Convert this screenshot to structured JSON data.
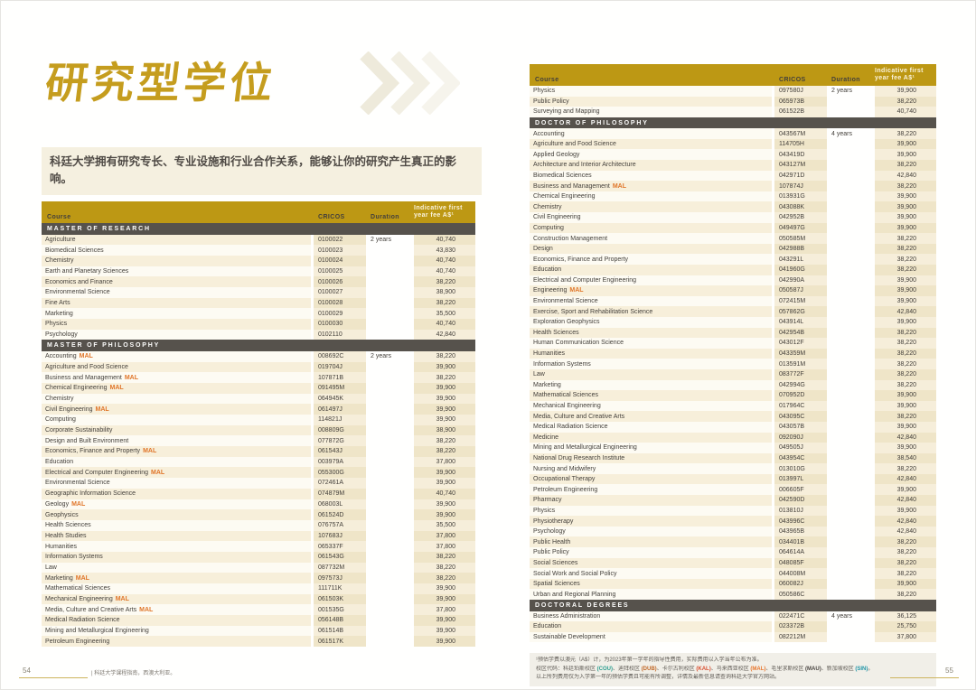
{
  "left_page": {
    "title": "研究型学位",
    "intro": "科廷大学拥有研究专长、专业设施和行业合作关系，能够让你的研究产生真正的影响。",
    "page_number": "54",
    "footer_text": "| 科廷大学课程指南，西澳大利亚。",
    "table": {
      "columns": {
        "course": "Course",
        "cricos": "CRICOS",
        "duration": "Duration",
        "fee_line1": "Indicative first",
        "fee_line2": "year fee A$¹"
      },
      "sections": [
        {
          "title": "MASTER OF RESEARCH",
          "stripe_start": "dark",
          "rows": [
            {
              "course": "Agriculture",
              "cricos": "0100022",
              "duration": "2 years",
              "fee": "40,740"
            },
            {
              "course": "Biomedical Sciences",
              "cricos": "0100023",
              "fee": "43,830"
            },
            {
              "course": "Chemistry",
              "cricos": "0100024",
              "fee": "40,740"
            },
            {
              "course": "Earth and Planetary Sciences",
              "cricos": "0100025",
              "fee": "40,740"
            },
            {
              "course": "Economics and Finance",
              "cricos": "0100026",
              "fee": "38,220"
            },
            {
              "course": "Environmental Science",
              "cricos": "0100027",
              "fee": "38,900"
            },
            {
              "course": "Fine Arts",
              "cricos": "0100028",
              "fee": "38,220"
            },
            {
              "course": "Marketing",
              "cricos": "0100029",
              "fee": "35,500"
            },
            {
              "course": "Physics",
              "cricos": "0100030",
              "fee": "40,740"
            },
            {
              "course": "Psychology",
              "cricos": "0102110",
              "fee": "42,840"
            }
          ]
        },
        {
          "title": "MASTER OF PHILOSOPHY",
          "stripe_start": "light",
          "rows": [
            {
              "course": "Accounting",
              "tag": "MAL",
              "cricos": "008692C",
              "duration": "2 years",
              "fee": "38,220"
            },
            {
              "course": "Agriculture and Food Science",
              "cricos": "019704J",
              "fee": "39,900"
            },
            {
              "course": "Business and Management",
              "tag": "MAL",
              "cricos": "107871B",
              "fee": "38,220"
            },
            {
              "course": "Chemical Engineering",
              "tag": "MAL",
              "cricos": "091495M",
              "fee": "39,900"
            },
            {
              "course": "Chemistry",
              "cricos": "064945K",
              "fee": "39,900"
            },
            {
              "course": "Civil Engineering",
              "tag": "MAL",
              "cricos": "061497J",
              "fee": "39,900"
            },
            {
              "course": "Computing",
              "cricos": "114821J",
              "fee": "39,900"
            },
            {
              "course": "Corporate Sustainability",
              "cricos": "008809G",
              "fee": "38,900"
            },
            {
              "course": "Design and Built Environment",
              "cricos": "077872G",
              "fee": "38,220"
            },
            {
              "course": "Economics, Finance and Property",
              "tag": "MAL",
              "cricos": "061543J",
              "fee": "38,220"
            },
            {
              "course": "Education",
              "cricos": "003979A",
              "fee": "37,800"
            },
            {
              "course": "Electrical and Computer Engineering",
              "tag": "MAL",
              "cricos": "055300G",
              "fee": "39,900"
            },
            {
              "course": "Environmental Science",
              "cricos": "072461A",
              "fee": "39,900"
            },
            {
              "course": "Geographic Information Science",
              "cricos": "074879M",
              "fee": "40,740"
            },
            {
              "course": "Geology",
              "tag": "MAL",
              "cricos": "068003L",
              "fee": "39,900"
            },
            {
              "course": "Geophysics",
              "cricos": "061524D",
              "fee": "39,900"
            },
            {
              "course": "Health Sciences",
              "cricos": "076757A",
              "fee": "35,500"
            },
            {
              "course": "Health Studies",
              "cricos": "107683J",
              "fee": "37,800"
            },
            {
              "course": "Humanities",
              "cricos": "065337F",
              "fee": "37,800"
            },
            {
              "course": "Information Systems",
              "cricos": "061543G",
              "fee": "38,220"
            },
            {
              "course": "Law",
              "cricos": "087732M",
              "fee": "38,220"
            },
            {
              "course": "Marketing",
              "tag": "MAL",
              "cricos": "097573J",
              "fee": "38,220"
            },
            {
              "course": "Mathematical Sciences",
              "cricos": "111711K",
              "fee": "39,900"
            },
            {
              "course": "Mechanical Engineering",
              "tag": "MAL",
              "cricos": "061503K",
              "fee": "39,900"
            },
            {
              "course": "Media, Culture and Creative Arts",
              "tag": "MAL",
              "cricos": "001535G",
              "fee": "37,800"
            },
            {
              "course": "Medical Radiation Science",
              "cricos": "056148B",
              "fee": "39,900"
            },
            {
              "course": "Mining and Metallurgical Engineering",
              "cricos": "061514B",
              "fee": "39,900"
            },
            {
              "course": "Petroleum Engineering",
              "cricos": "061517K",
              "fee": "39,900"
            }
          ]
        }
      ]
    }
  },
  "right_page": {
    "page_number": "55",
    "table": {
      "columns": {
        "course": "Course",
        "cricos": "CRICOS",
        "duration": "Duration",
        "fee_line1": "Indicative first",
        "fee_line2": "year fee A$¹"
      },
      "sections": [
        {
          "title": "",
          "stripe_start": "light",
          "rows": [
            {
              "course": "Physics",
              "cricos": "097580J",
              "duration": "2 years",
              "fee": "39,900"
            },
            {
              "course": "Public Policy",
              "cricos": "065973B",
              "fee": "38,220"
            },
            {
              "course": "Surveying and Mapping",
              "cricos": "061522B",
              "fee": "40,740"
            }
          ]
        },
        {
          "title": "DOCTOR OF PHILOSOPHY",
          "stripe_start": "light",
          "rows": [
            {
              "course": "Accounting",
              "cricos": "043567M",
              "duration": "4 years",
              "fee": "38,220"
            },
            {
              "course": "Agriculture and Food Science",
              "cricos": "114705H",
              "fee": "39,900"
            },
            {
              "course": "Applied Geology",
              "cricos": "043419D",
              "fee": "39,900"
            },
            {
              "course": "Architecture and Interior Architecture",
              "cricos": "043127M",
              "fee": "38,220"
            },
            {
              "course": "Biomedical Sciences",
              "cricos": "042971D",
              "fee": "42,840"
            },
            {
              "course": "Business and Management",
              "tag": "MAL",
              "cricos": "107874J",
              "fee": "38,220"
            },
            {
              "course": "Chemical Engineering",
              "cricos": "013931G",
              "fee": "39,900"
            },
            {
              "course": "Chemistry",
              "cricos": "043088K",
              "fee": "39,900"
            },
            {
              "course": "Civil Engineering",
              "cricos": "042952B",
              "fee": "39,900"
            },
            {
              "course": "Computing",
              "cricos": "049497G",
              "fee": "39,900"
            },
            {
              "course": "Construction Management",
              "cricos": "050585M",
              "fee": "38,220"
            },
            {
              "course": "Design",
              "cricos": "042988B",
              "fee": "38,220"
            },
            {
              "course": "Economics, Finance and Property",
              "cricos": "043291L",
              "fee": "38,220"
            },
            {
              "course": "Education",
              "cricos": "041960G",
              "fee": "38,220"
            },
            {
              "course": "Electrical and Computer Engineering",
              "cricos": "042990A",
              "fee": "39,900"
            },
            {
              "course": "Engineering",
              "tag": "MAL",
              "cricos": "050587J",
              "fee": "39,900"
            },
            {
              "course": "Environmental Science",
              "cricos": "072415M",
              "fee": "39,900"
            },
            {
              "course": "Exercise, Sport and Rehabilitation Science",
              "cricos": "057862G",
              "fee": "42,840"
            },
            {
              "course": "Exploration Geophysics",
              "cricos": "043914L",
              "fee": "39,900"
            },
            {
              "course": "Health Sciences",
              "cricos": "042954B",
              "fee": "38,220"
            },
            {
              "course": "Human Communication Science",
              "cricos": "043012F",
              "fee": "38,220"
            },
            {
              "course": "Humanities",
              "cricos": "043359M",
              "fee": "38,220"
            },
            {
              "course": "Information Systems",
              "cricos": "013591M",
              "fee": "38,220"
            },
            {
              "course": "Law",
              "cricos": "083772F",
              "fee": "38,220"
            },
            {
              "course": "Marketing",
              "cricos": "042994G",
              "fee": "38,220"
            },
            {
              "course": "Mathematical Sciences",
              "cricos": "070952D",
              "fee": "39,900"
            },
            {
              "course": "Mechanical Engineering",
              "cricos": "017964C",
              "fee": "39,900"
            },
            {
              "course": "Media, Culture and Creative Arts",
              "cricos": "043095C",
              "fee": "38,220"
            },
            {
              "course": "Medical Radiation Science",
              "cricos": "043057B",
              "fee": "39,900"
            },
            {
              "course": "Medicine",
              "cricos": "092090J",
              "fee": "42,840"
            },
            {
              "course": "Mining and Metallurgical Engineering",
              "cricos": "049505J",
              "fee": "39,900"
            },
            {
              "course": "National Drug Research Institute",
              "cricos": "043954C",
              "fee": "38,540"
            },
            {
              "course": "Nursing and Midwifery",
              "cricos": "013010G",
              "fee": "38,220"
            },
            {
              "course": "Occupational Therapy",
              "cricos": "013997L",
              "fee": "42,840"
            },
            {
              "course": "Petroleum Engineering",
              "cricos": "006605F",
              "fee": "39,900"
            },
            {
              "course": "Pharmacy",
              "cricos": "042590D",
              "fee": "42,840"
            },
            {
              "course": "Physics",
              "cricos": "013810J",
              "fee": "39,900"
            },
            {
              "course": "Physiotherapy",
              "cricos": "043996C",
              "fee": "42,840"
            },
            {
              "course": "Psychology",
              "cricos": "043965B",
              "fee": "42,840"
            },
            {
              "course": "Public Health",
              "cricos": "034401B",
              "fee": "38,220"
            },
            {
              "course": "Public Policy",
              "cricos": "064614A",
              "fee": "38,220"
            },
            {
              "course": "Social Sciences",
              "cricos": "048085F",
              "fee": "38,220"
            },
            {
              "course": "Social Work and Social Policy",
              "cricos": "044008M",
              "fee": "38,220"
            },
            {
              "course": "Spatial Sciences",
              "cricos": "060082J",
              "fee": "39,900"
            },
            {
              "course": "Urban and Regional Planning",
              "cricos": "050586C",
              "fee": "38,220"
            }
          ]
        },
        {
          "title": "DOCTORAL DEGREES",
          "stripe_start": "light",
          "rows": [
            {
              "course": "Business Administration",
              "cricos": "022471C",
              "duration": "4 years",
              "fee": "36,125"
            },
            {
              "course": "Education",
              "cricos": "023372B",
              "fee": "25,750"
            },
            {
              "course": "Sustainable Development",
              "cricos": "082212M",
              "fee": "37,800"
            }
          ]
        }
      ]
    },
    "footnote_lines": [
      [
        {
          "text": "¹预估学费以澳元（A$）计，为2023年第一学年的指导性费用，实际费用以入学当年公布为准。"
        }
      ],
      [
        {
          "text": "校区代码：科廷珀斯校区 "
        },
        {
          "text": "(COU)",
          "color": "#2a9d8f"
        },
        {
          "text": "、迪拜校区 "
        },
        {
          "text": "(DUB)",
          "color": "#c06726"
        },
        {
          "text": "、卡尔古利校区 "
        },
        {
          "text": "(KAL)",
          "color": "#d94f30"
        },
        {
          "text": "、马来西亚校区 "
        },
        {
          "text": "(MAL)",
          "color": "#e8762d"
        },
        {
          "text": "、毛里求斯校区 "
        },
        {
          "text": "(MAU)",
          "color": "#4a4642"
        },
        {
          "text": "、新加坡校区 "
        },
        {
          "text": "(SIN)",
          "color": "#2196a8"
        },
        {
          "text": "。"
        }
      ],
      [
        {
          "text": "以上所列费用仅为入学第一年的预估学费且可能有所调整，详情及最新信息请查询科廷大学官方网站。"
        }
      ]
    ]
  },
  "colors": {
    "gold_header": "#bd9814",
    "section_bar": "#56524c",
    "title_gold": "#c59d1e",
    "mal_tag": "#e0762a"
  }
}
